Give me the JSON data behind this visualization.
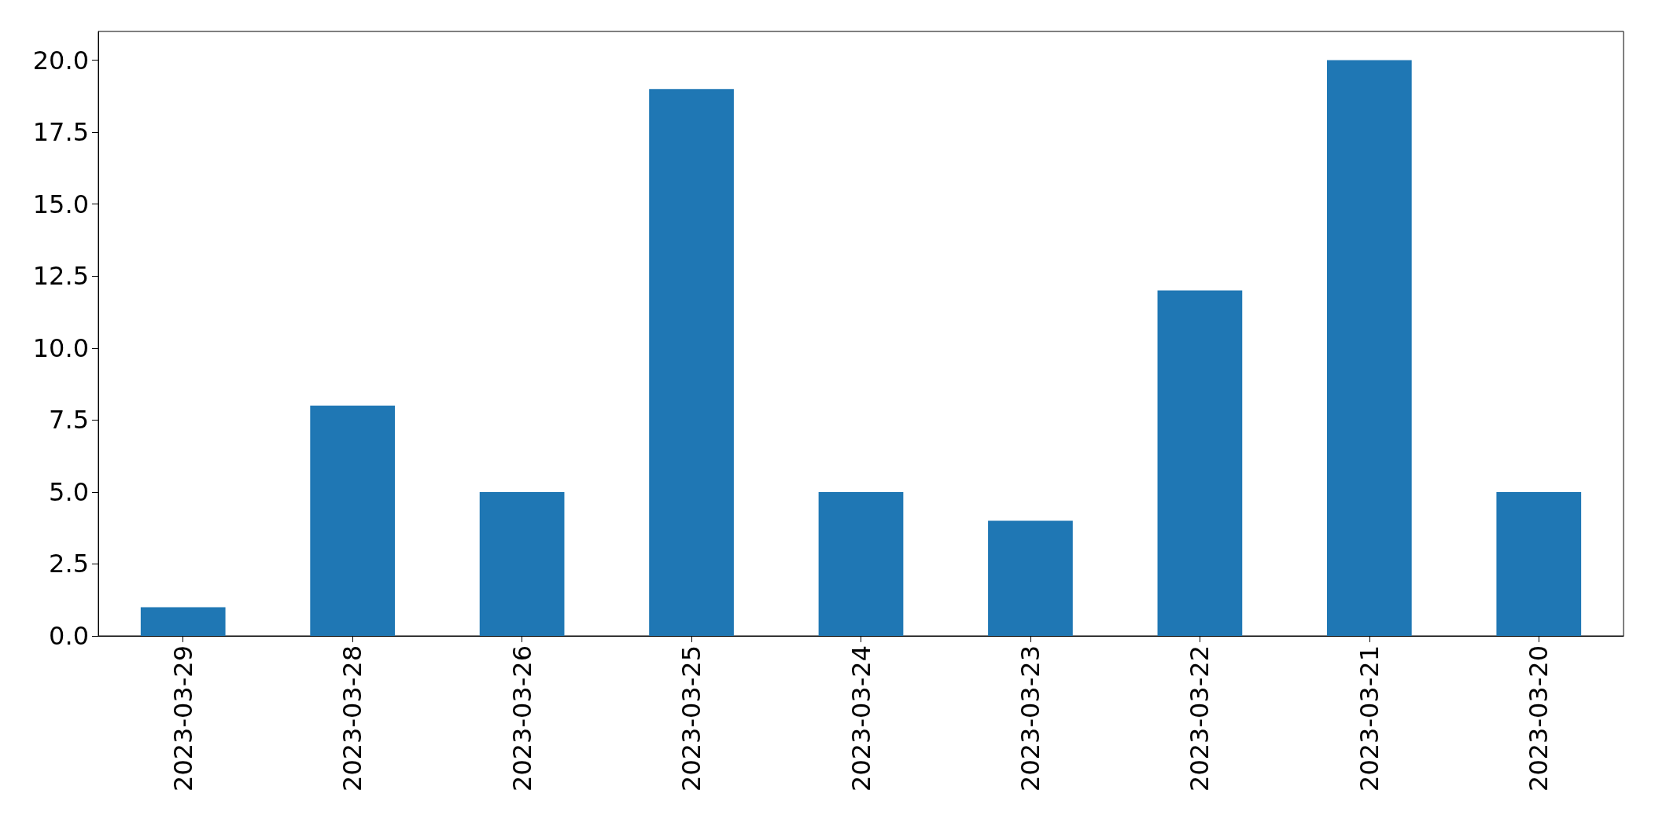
{
  "chart_data": {
    "type": "bar",
    "categories": [
      "2023-03-29",
      "2023-03-28",
      "2023-03-26",
      "2023-03-25",
      "2023-03-24",
      "2023-03-23",
      "2023-03-22",
      "2023-03-21",
      "2023-03-20"
    ],
    "values": [
      1,
      8,
      5,
      19,
      5,
      4,
      12,
      20,
      5
    ],
    "color": "#1f77b4",
    "ylim": [
      0,
      21
    ],
    "yticks": [
      {
        "value": 0,
        "label": "0.0"
      },
      {
        "value": 2.5,
        "label": "2.5"
      },
      {
        "value": 5,
        "label": "5.0"
      },
      {
        "value": 7.5,
        "label": "7.5"
      },
      {
        "value": 10,
        "label": "10.0"
      },
      {
        "value": 12.5,
        "label": "12.5"
      },
      {
        "value": 15,
        "label": "15.0"
      },
      {
        "value": 17.5,
        "label": "17.5"
      },
      {
        "value": 20,
        "label": "20.0"
      }
    ],
    "grid": false
  }
}
